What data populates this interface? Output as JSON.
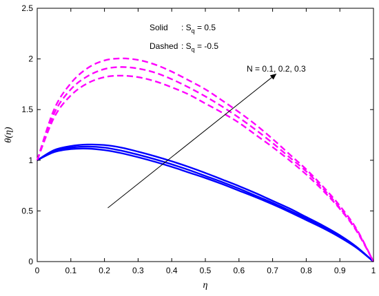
{
  "chart_data": {
    "type": "line",
    "title": "",
    "xlabel": "η",
    "ylabel": "θ(η)",
    "xlim": [
      0,
      1
    ],
    "ylim": [
      0,
      2.5
    ],
    "x_ticks": [
      0,
      0.1,
      0.2,
      0.3,
      0.4,
      0.5,
      0.6,
      0.7,
      0.8,
      0.9,
      1
    ],
    "x_tick_labels": [
      "0",
      "0.1",
      "0.2",
      "0.3",
      "0.4",
      "0.5",
      "0.6",
      "0.7",
      "0.8",
      "0.9",
      "1"
    ],
    "y_ticks": [
      0,
      0.5,
      1,
      1.5,
      2,
      2.5
    ],
    "y_tick_labels": [
      "0",
      "0.5",
      "1",
      "1.5",
      "2",
      "2.5"
    ],
    "grid": false,
    "x": [
      0,
      0.05,
      0.1,
      0.15,
      0.2,
      0.25,
      0.3,
      0.35,
      0.4,
      0.45,
      0.5,
      0.55,
      0.6,
      0.65,
      0.7,
      0.75,
      0.8,
      0.85,
      0.9,
      0.95,
      1
    ],
    "series": [
      {
        "style": "solid",
        "color": "#0000FF",
        "values": [
          1.0,
          1.08,
          1.11,
          1.115,
          1.1,
          1.07,
          1.03,
          0.985,
          0.935,
          0.88,
          0.825,
          0.765,
          0.7,
          0.635,
          0.565,
          0.49,
          0.41,
          0.33,
          0.24,
          0.135,
          0.0
        ]
      },
      {
        "style": "solid",
        "color": "#0000FF",
        "values": [
          1.0,
          1.09,
          1.125,
          1.135,
          1.125,
          1.095,
          1.055,
          1.01,
          0.96,
          0.905,
          0.845,
          0.785,
          0.72,
          0.65,
          0.58,
          0.505,
          0.425,
          0.34,
          0.25,
          0.14,
          0.0
        ]
      },
      {
        "style": "solid",
        "color": "#0000FF",
        "values": [
          1.0,
          1.1,
          1.14,
          1.155,
          1.15,
          1.125,
          1.085,
          1.04,
          0.99,
          0.935,
          0.875,
          0.81,
          0.745,
          0.675,
          0.6,
          0.525,
          0.44,
          0.355,
          0.26,
          0.145,
          0.0
        ]
      },
      {
        "style": "dashed",
        "color": "#FF00FF",
        "values": [
          1.0,
          1.42,
          1.64,
          1.76,
          1.82,
          1.835,
          1.82,
          1.78,
          1.72,
          1.65,
          1.56,
          1.47,
          1.37,
          1.25,
          1.13,
          1.0,
          0.86,
          0.7,
          0.52,
          0.3,
          0.0
        ]
      },
      {
        "style": "dashed",
        "color": "#FF00FF",
        "values": [
          1.0,
          1.46,
          1.7,
          1.83,
          1.9,
          1.92,
          1.905,
          1.865,
          1.8,
          1.72,
          1.63,
          1.53,
          1.42,
          1.3,
          1.17,
          1.03,
          0.89,
          0.72,
          0.53,
          0.31,
          0.0
        ]
      },
      {
        "style": "dashed",
        "color": "#FF00FF",
        "values": [
          1.0,
          1.5,
          1.76,
          1.91,
          1.985,
          2.005,
          1.99,
          1.945,
          1.875,
          1.79,
          1.7,
          1.59,
          1.475,
          1.35,
          1.21,
          1.06,
          0.91,
          0.74,
          0.55,
          0.32,
          0.0
        ]
      }
    ],
    "annotations": {
      "solid_label": "Solid",
      "solid_value": ": S",
      "solid_sub": "q",
      "solid_rest": " = 0.5",
      "dashed_label": "Dashed",
      "dashed_value": ": S",
      "dashed_sub": "q",
      "dashed_rest": " = -0.5",
      "arrow_label": "N = 0.1, 0.2, 0.3",
      "arrow_from": [
        0.21,
        0.53
      ],
      "arrow_to": [
        0.71,
        1.85
      ]
    }
  }
}
